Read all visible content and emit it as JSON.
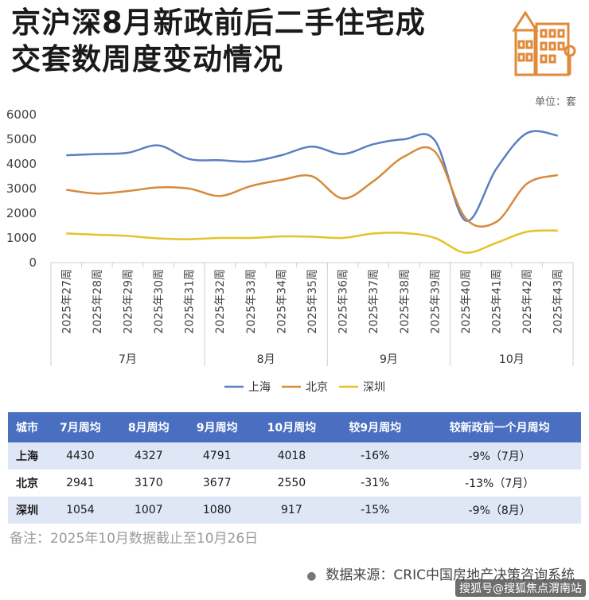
{
  "title": {
    "line1": "京沪深8月新政前后二手住宅成",
    "line2": "交套数周度变动情况"
  },
  "logo_icon": "building-icon",
  "unit": "单位：套",
  "chart_data": {
    "type": "line",
    "categories": [
      "2025年27周",
      "2025年28周",
      "2025年29周",
      "2025年30周",
      "2025年31周",
      "2025年32周",
      "2025年33周",
      "2025年34周",
      "2025年35周",
      "2025年36周",
      "2025年37周",
      "2025年38周",
      "2025年39周",
      "2025年40周",
      "2025年41周",
      "2025年42周",
      "2025年43周"
    ],
    "month_groups": [
      {
        "label": "7月",
        "start": 0,
        "end": 4
      },
      {
        "label": "8月",
        "start": 5,
        "end": 8
      },
      {
        "label": "9月",
        "start": 9,
        "end": 12
      },
      {
        "label": "10月",
        "start": 13,
        "end": 16
      }
    ],
    "series": [
      {
        "name": "上海",
        "color": "#5b7fc0",
        "values": [
          4350,
          4400,
          4450,
          4750,
          4200,
          4150,
          4100,
          4350,
          4700,
          4400,
          4800,
          5000,
          4950,
          1700,
          3800,
          5250,
          5150
        ]
      },
      {
        "name": "北京",
        "color": "#d68a3c",
        "values": [
          2950,
          2800,
          2900,
          3050,
          3000,
          2700,
          3100,
          3350,
          3500,
          2600,
          3300,
          4300,
          4500,
          1800,
          1650,
          3200,
          3550
        ]
      },
      {
        "name": "深圳",
        "color": "#e6c229",
        "values": [
          1180,
          1130,
          1080,
          980,
          950,
          1000,
          1000,
          1060,
          1050,
          1000,
          1180,
          1200,
          1000,
          400,
          800,
          1250,
          1300
        ]
      }
    ],
    "yticks": [
      0,
      1000,
      2000,
      3000,
      4000,
      5000,
      6000
    ],
    "ylim": [
      0,
      6000
    ]
  },
  "table": {
    "headers": [
      "城市",
      "7月周均",
      "8月周均",
      "9月周均",
      "10月周均",
      "较9月周均",
      "较新政前一个月周均"
    ],
    "rows": [
      [
        "上海",
        "4430",
        "4327",
        "4791",
        "4018",
        "-16%",
        "-9%（7月）"
      ],
      [
        "北京",
        "2941",
        "3170",
        "3677",
        "2550",
        "-31%",
        "-13%（7月）"
      ],
      [
        "深圳",
        "1054",
        "1007",
        "1080",
        "917",
        "-15%",
        "-9%（8月）"
      ]
    ]
  },
  "note": "备注：2025年10月数据截止至10月26日",
  "source": {
    "bullet": "●",
    "text": "数据来源：CRIC中国房地产决策咨询系统"
  },
  "watermark": "搜狐号@搜狐焦点渭南站"
}
